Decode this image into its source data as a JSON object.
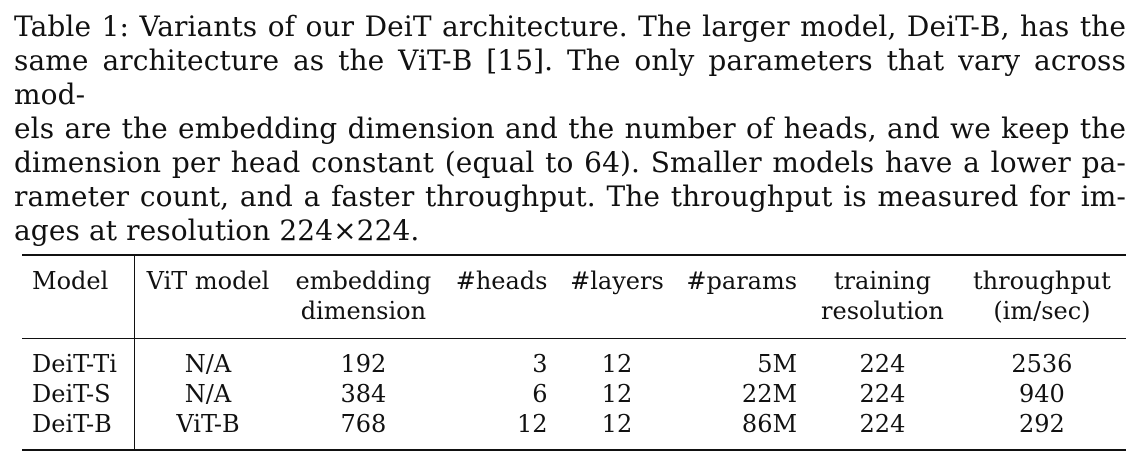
{
  "caption": {
    "lines": [
      "Table 1: Variants of our DeiT architecture. The larger model, DeiT-B, has the",
      "same architecture as the ViT-B [15]. The only parameters that vary across mod-",
      "els are the embedding dimension and the number of heads, and we keep the",
      "dimension per head constant (equal to 64). Smaller models have a lower pa-",
      "rameter count, and a faster throughput. The throughput is measured for im-",
      "ages at resolution 224×224."
    ]
  },
  "table": {
    "headers": {
      "model": "Model",
      "vit_model": "ViT model",
      "embedding_1": "embedding",
      "embedding_2": "dimension",
      "heads": "#heads",
      "layers": "#layers",
      "params": "#params",
      "resolution_1": "training",
      "resolution_2": "resolution",
      "throughput_1": "throughput",
      "throughput_2": "(im/sec)"
    },
    "rows": [
      {
        "model": "DeiT-Ti",
        "vit_model": "N/A",
        "embedding": "192",
        "heads": "3",
        "layers": "12",
        "params": "5M",
        "resolution": "224",
        "throughput": "2536"
      },
      {
        "model": "DeiT-S",
        "vit_model": "N/A",
        "embedding": "384",
        "heads": "6",
        "layers": "12",
        "params": "22M",
        "resolution": "224",
        "throughput": "940"
      },
      {
        "model": "DeiT-B",
        "vit_model": "ViT-B",
        "embedding": "768",
        "heads": "12",
        "layers": "12",
        "params": "86M",
        "resolution": "224",
        "throughput": "292"
      }
    ]
  }
}
